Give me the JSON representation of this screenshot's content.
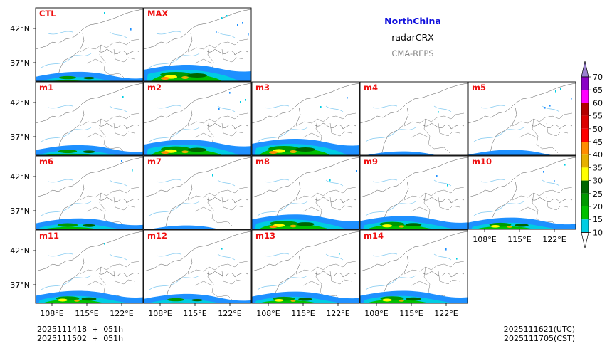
{
  "title": {
    "region": "NorthChina",
    "variable": "radarCRX",
    "model": "CMA-REPS",
    "region_color": "#1111dd",
    "model_color": "#888888"
  },
  "panels": [
    {
      "id": "CTL",
      "rain": 0.55,
      "north": 0.15
    },
    {
      "id": "MAX",
      "rain": 1.0,
      "north": 0.6
    },
    {
      "id": "m1",
      "rain": 0.6,
      "north": 0.1
    },
    {
      "id": "m2",
      "rain": 0.95,
      "north": 0.35
    },
    {
      "id": "m3",
      "rain": 1.0,
      "north": 0.2
    },
    {
      "id": "m4",
      "rain": 0.2,
      "north": 0.1
    },
    {
      "id": "m5",
      "rain": 0.3,
      "north": 0.5
    },
    {
      "id": "m6",
      "rain": 0.65,
      "north": 0.15
    },
    {
      "id": "m7",
      "rain": 0.2,
      "north": 0.1
    },
    {
      "id": "m8",
      "rain": 0.9,
      "north": 0.15
    },
    {
      "id": "m9",
      "rain": 0.8,
      "north": 0.15
    },
    {
      "id": "m10",
      "rain": 0.7,
      "north": 0.3
    },
    {
      "id": "m11",
      "rain": 0.75,
      "north": 0.1
    },
    {
      "id": "m12",
      "rain": 0.55,
      "north": 0.1
    },
    {
      "id": "m13",
      "rain": 0.7,
      "north": 0.1
    },
    {
      "id": "m14",
      "rain": 0.75,
      "north": 0.15
    }
  ],
  "lat_ticks": [
    "42°N",
    "37°N"
  ],
  "lon_ticks": [
    "108°E",
    "115°E",
    "122°E"
  ],
  "colorbar": {
    "levels": [
      "10",
      "15",
      "20",
      "25",
      "30",
      "35",
      "40",
      "45",
      "50",
      "55",
      "60",
      "65",
      "70"
    ],
    "colors": [
      "#1e90ff",
      "#00cde3",
      "#00c000",
      "#009900",
      "#006600",
      "#ffff00",
      "#e6b000",
      "#ff8c00",
      "#ff0000",
      "#dd0000",
      "#b40000",
      "#ff00ff",
      "#8b00c6",
      "#9a80d0"
    ],
    "extend": "both"
  },
  "footer": {
    "init_line1": "2025111418  +  051h",
    "init_line2": "2025111502  +  051h",
    "valid_utc": "2025111621(UTC)",
    "valid_cst": "2025111705(CST)"
  }
}
